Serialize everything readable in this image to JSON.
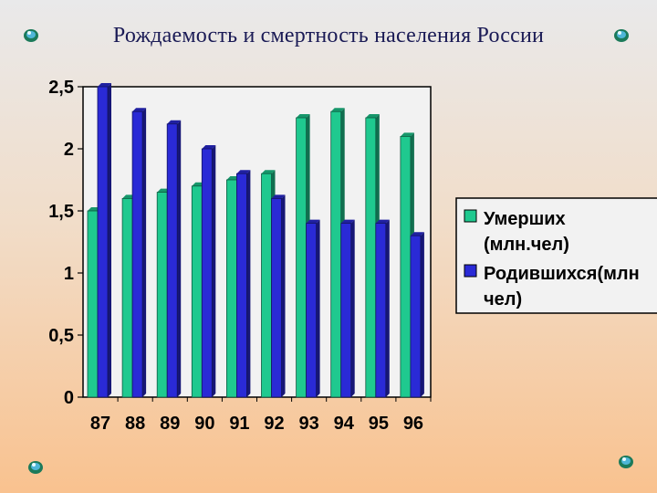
{
  "page": {
    "title": "Рождаемость и смертность населения России"
  },
  "colors": {
    "deaths": "#1fc98f",
    "births": "#2a2ad6",
    "plot_bg": "#f2f2f2",
    "legend_bg": "#f2f2f2"
  },
  "icons": [
    "gem-bullet-icon",
    "gem-bullet-icon",
    "gem-bullet-icon",
    "gem-bullet-icon"
  ],
  "chart_data": {
    "type": "bar",
    "title": "",
    "xlabel": "",
    "ylabel": "",
    "categories": [
      "87",
      "88",
      "89",
      "90",
      "91",
      "92",
      "93",
      "94",
      "95",
      "96"
    ],
    "series": [
      {
        "name": "Умерших (млн.чел)",
        "legend_lines": [
          "Умерших",
          "(млн.чел)"
        ],
        "values": [
          1.5,
          1.6,
          1.65,
          1.7,
          1.75,
          1.8,
          2.25,
          2.3,
          2.25,
          2.1
        ]
      },
      {
        "name": "Родившихся(млн чел)",
        "legend_lines": [
          "Родившихся(млн",
          "чел)"
        ],
        "values": [
          2.5,
          2.3,
          2.2,
          2.0,
          1.8,
          1.6,
          1.4,
          1.4,
          1.4,
          1.3
        ]
      }
    ],
    "ylim": [
      0,
      2.5
    ],
    "yticks": [
      "0",
      "0,5",
      "1",
      "1,5",
      "2",
      "2,5"
    ],
    "grid": false,
    "legend_position": "right"
  }
}
